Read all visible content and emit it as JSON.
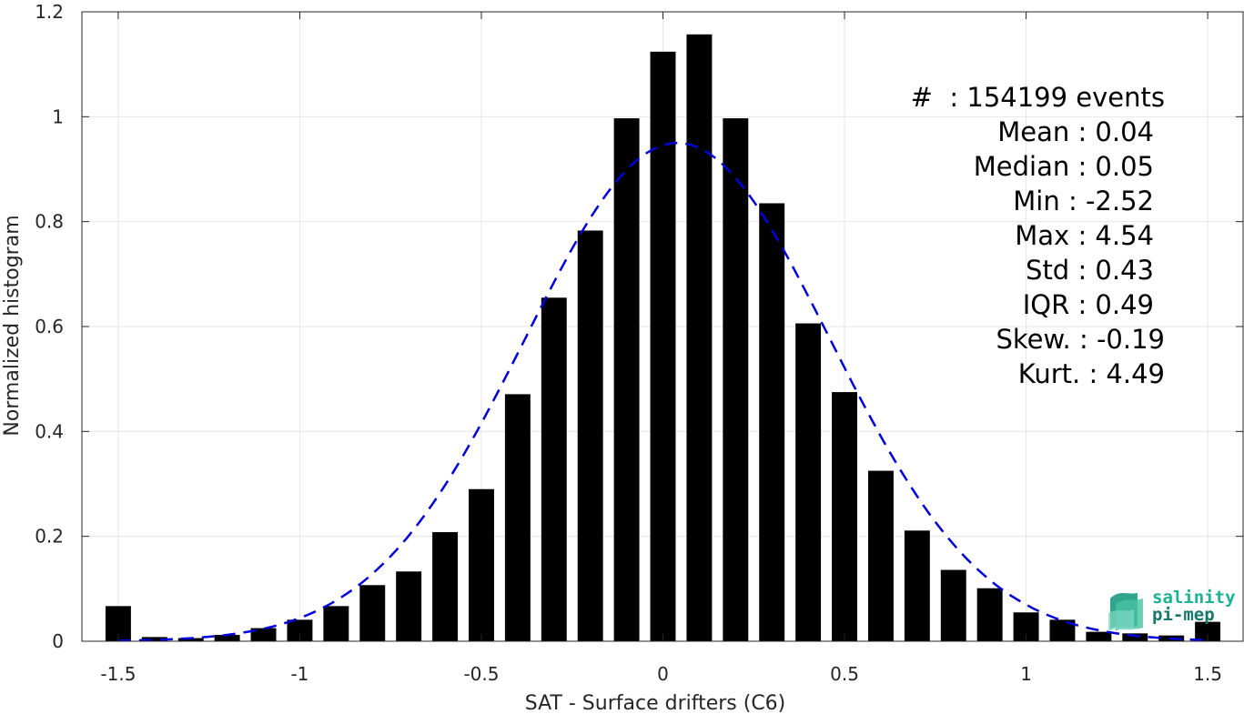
{
  "chart_data": {
    "type": "bar",
    "xlabel": "SAT - Surface drifters (C6)",
    "ylabel": "Normalized histogram",
    "xlim": [
      -1.6,
      1.6
    ],
    "ylim": [
      0,
      1.2
    ],
    "xticks": [
      "-1.5",
      "-1",
      "-0.5",
      "0",
      "0.5",
      "1",
      "1.5"
    ],
    "yticks": [
      "0",
      "0.2",
      "0.4",
      "0.6",
      "0.8",
      "1",
      "1.2"
    ],
    "grid": true,
    "bar_color": "#000000",
    "x": [
      -1.5,
      -1.4,
      -1.3,
      -1.2,
      -1.1,
      -1.0,
      -0.9,
      -0.8,
      -0.7,
      -0.6,
      -0.5,
      -0.4,
      -0.3,
      -0.2,
      -0.1,
      0.0,
      0.1,
      0.2,
      0.3,
      0.4,
      0.5,
      0.6,
      0.7,
      0.8,
      0.9,
      1.0,
      1.1,
      1.2,
      1.3,
      1.4,
      1.5
    ],
    "values": [
      0.067,
      0.008,
      0.006,
      0.012,
      0.025,
      0.041,
      0.067,
      0.107,
      0.133,
      0.208,
      0.29,
      0.471,
      0.655,
      0.783,
      0.997,
      1.124,
      1.157,
      0.997,
      0.835,
      0.606,
      0.475,
      0.325,
      0.211,
      0.136,
      0.101,
      0.055,
      0.041,
      0.018,
      0.015,
      0.011,
      0.037
    ],
    "fit": {
      "type": "gaussian",
      "style": "dashed",
      "color": "#0000dd",
      "mean": 0.04,
      "std": 0.42,
      "peak": 0.95
    }
  },
  "stats": [
    {
      "label": "#  ",
      "value": ": 154199 events"
    },
    {
      "label": "Mean ",
      "value": ": 0.04"
    },
    {
      "label": "Median ",
      "value": ": 0.05"
    },
    {
      "label": "Min ",
      "value": ": -2.52"
    },
    {
      "label": "Max ",
      "value": ": 4.54"
    },
    {
      "label": "Std ",
      "value": ": 0.43"
    },
    {
      "label": "IQR ",
      "value": ": 0.49"
    },
    {
      "label": "Skew. ",
      "value": ": -0.19"
    },
    {
      "label": "Kurt. ",
      "value": ": 4.49"
    }
  ],
  "logo": {
    "line1": "salinity",
    "line2": "pi-mep",
    "color1": "#1ab394",
    "color2": "#16786b"
  }
}
